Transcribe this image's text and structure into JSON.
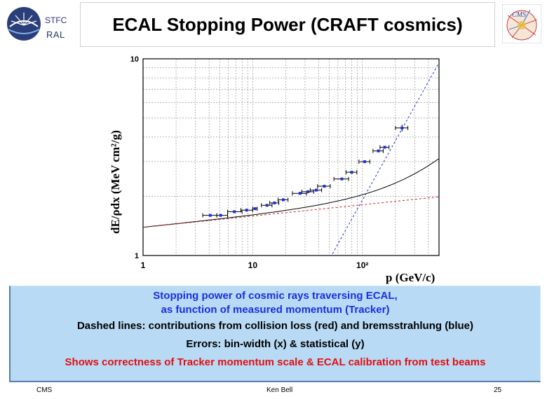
{
  "header": {
    "title": "ECAL Stopping Power (CRAFT cosmics)",
    "logo_left_line1": "STFC",
    "logo_left_line2": "RAL",
    "logo_right": "CMS"
  },
  "chart_data": {
    "type": "scatter",
    "xscale": "log",
    "yscale": "log",
    "xlim": [
      1,
      500
    ],
    "ylim": [
      1,
      10
    ],
    "xlabel": "p (GeV/c)",
    "ylabel": "dE/ρdx (MeV cm²/g)",
    "x_ticks": [
      "1",
      "10",
      "10²"
    ],
    "y_ticks": [
      "1",
      "10"
    ],
    "grid": true,
    "series": [
      {
        "color": "#1a2ee0",
        "points": [
          {
            "x": 4.1,
            "y": 1.6,
            "xerr": [
              0.6,
              0.6
            ]
          },
          {
            "x": 5.1,
            "y": 1.6,
            "xerr": [
              0.4,
              0.8
            ]
          },
          {
            "x": 6.8,
            "y": 1.67,
            "xerr": [
              0.9,
              1.2
            ]
          },
          {
            "x": 8.8,
            "y": 1.7,
            "xerr": [
              1.0,
              1.2
            ]
          },
          {
            "x": 10.5,
            "y": 1.73,
            "xerr": [
              0.5,
              0.5
            ]
          },
          {
            "x": 13.5,
            "y": 1.8,
            "xerr": [
              1.5,
              1.5
            ]
          },
          {
            "x": 15.8,
            "y": 1.85,
            "xerr": [
              1.5,
              1.5
            ]
          },
          {
            "x": 19,
            "y": 1.92,
            "xerr": [
              2.0,
              2.0
            ]
          },
          {
            "x": 27,
            "y": 2.07,
            "xerr": [
              4.0,
              4.0
            ]
          },
          {
            "x": 32,
            "y": 2.11,
            "xerr": [
              4.0,
              4.0
            ]
          },
          {
            "x": 38,
            "y": 2.15,
            "xerr": [
              4.5,
              4.5
            ]
          },
          {
            "x": 45,
            "y": 2.25,
            "xerr": [
              6.0,
              6.0
            ]
          },
          {
            "x": 65,
            "y": 2.45,
            "xerr": [
              10.0,
              10.0
            ]
          },
          {
            "x": 80,
            "y": 2.65,
            "xerr": [
              9.0,
              9.0
            ]
          },
          {
            "x": 105,
            "y": 3.0,
            "xerr": [
              12.0,
              12.0
            ]
          },
          {
            "x": 140,
            "y": 3.4,
            "xerr": [
              15.0,
              15.0
            ]
          },
          {
            "x": 160,
            "y": 3.55,
            "xerr": [
              15.0,
              15.0
            ]
          },
          {
            "x": 230,
            "y": 4.45,
            "xerr": [
              30.0,
              30.0
            ],
            "yerr": 0.18
          }
        ]
      }
    ],
    "curves": [
      {
        "style": "solid",
        "color": "#000000",
        "a": 1.39,
        "b": 0.00225,
        "slope": 0.0575
      },
      {
        "style": "dashed",
        "color": "#cc2020",
        "a": 1.39,
        "slope": 0.0575
      },
      {
        "style": "dashed",
        "color": "#2030d0",
        "b": 0.00225
      }
    ]
  },
  "caption": {
    "line1": "Stopping power of cosmic rays traversing ECAL,",
    "line2": "as function of measured momentum (Tracker)",
    "line3": "Dashed lines: contributions from collision loss (red) and bremsstrahlung (blue)",
    "line4": "Errors: bin-width (x) & statistical (y)",
    "line5": "Shows correctness of Tracker momentum scale & ECAL calibration from test beams"
  },
  "footer": {
    "left": "CMS",
    "center": "Ken Bell",
    "right": "25"
  }
}
